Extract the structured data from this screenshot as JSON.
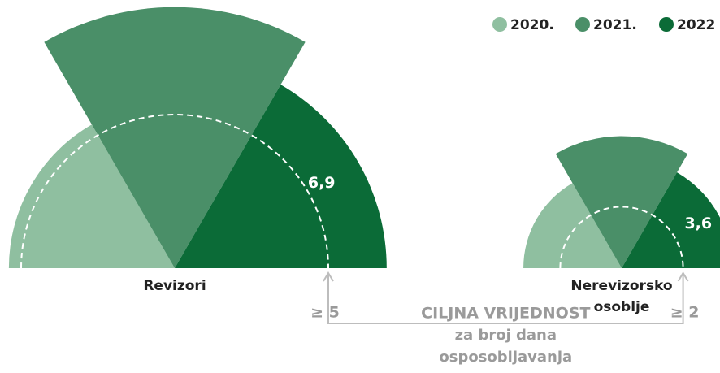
{
  "chart_data": {
    "type": "polar_area",
    "categories": [
      "Revizori",
      "Nerevizorsko osoblje"
    ],
    "series": [
      {
        "name": "2020.",
        "color": "#8fbfa0",
        "values": [
          5.4,
          3.2
        ]
      },
      {
        "name": "2021.",
        "color": "#4a8f68",
        "values": [
          8.5,
          4.3
        ]
      },
      {
        "name": "2022",
        "color": "#0b6b37",
        "values": [
          6.9,
          3.6
        ],
        "value_labels": [
          "6,9",
          "3,6"
        ]
      }
    ],
    "targets": {
      "values": [
        5,
        2
      ],
      "labels": [
        "≥ 5",
        "≥ 2"
      ]
    },
    "target_title": [
      "CILJNA VRIJEDNOST",
      "za broj dana",
      "osposobljavanja"
    ],
    "legend": "top-right"
  }
}
